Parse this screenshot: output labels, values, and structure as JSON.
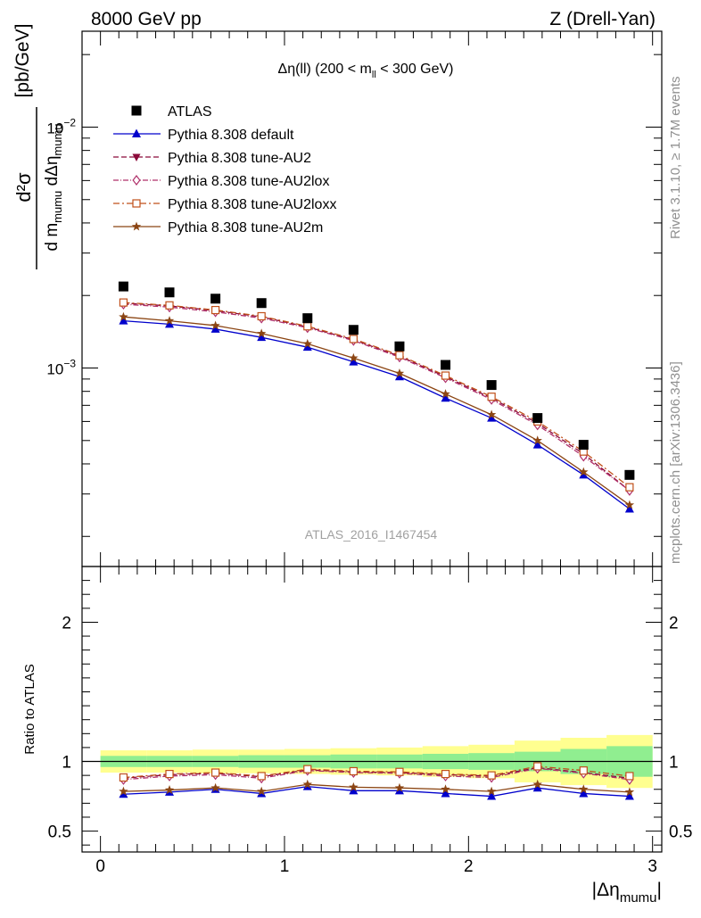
{
  "header": {
    "left": "8000 GeV pp",
    "right": "Z (Drell-Yan)"
  },
  "side_text": {
    "rivet": "Rivet 3.1.10, ≥ 1.7M events",
    "mcplots": "mcplots.cern.ch [arXiv:1306.3436]"
  },
  "watermark": "ATLAS_2016_I1467454",
  "colors": {
    "atlas": "#000000",
    "default": "#0000cc",
    "au2": "#8b0a3a",
    "au2lox": "#b0306a",
    "au2loxx": "#c0501a",
    "au2m": "#8b4513",
    "band_inner": "#90ee90",
    "band_outer": "#ffff90"
  },
  "chart_data": [
    {
      "type": "scatter",
      "title": "Δη(ll) (200 < m_ll < 300 GeV)",
      "title_parts": {
        "a": "Δη(ll) (200 < m",
        "sub": "ll",
        "b": " < 300 GeV)"
      },
      "ylabel_parts": {
        "num": "d²σ",
        "den_a": "d m",
        "den_sub1": "mumu",
        "den_b": " dΔη",
        "den_sub2": "mumu",
        "unit": "[pb/GeV]"
      },
      "yscale": "log",
      "ylim": [
        0.00015,
        0.025
      ],
      "xlim": [
        -0.1,
        3.05
      ],
      "y_ticks": [
        {
          "value": 0.001,
          "base": "10",
          "exp": "−3"
        },
        {
          "value": 0.01,
          "base": "10",
          "exp": "−2"
        }
      ],
      "x": [
        0.125,
        0.375,
        0.625,
        0.875,
        1.125,
        1.375,
        1.625,
        1.875,
        2.125,
        2.375,
        2.625,
        2.875
      ],
      "legend_position": "top-left",
      "series": [
        {
          "key": "atlas",
          "name": "ATLAS",
          "marker": "square",
          "values": [
            0.00218,
            0.00206,
            0.00194,
            0.00186,
            0.00161,
            0.00144,
            0.00123,
            0.00103,
            0.00085,
            0.00062,
            0.00048,
            0.00036
          ]
        },
        {
          "key": "default",
          "name": "Pythia 8.308 default",
          "marker": "triangle-up",
          "values": [
            0.00157,
            0.00152,
            0.00145,
            0.00134,
            0.00122,
            0.00106,
            0.00092,
            0.00075,
            0.00062,
            0.00048,
            0.00036,
            0.00026
          ]
        },
        {
          "key": "au2",
          "name": "Pythia 8.308 tune-AU2",
          "marker": "triangle-down",
          "values": [
            0.00186,
            0.00181,
            0.00173,
            0.00163,
            0.00148,
            0.00131,
            0.00112,
            0.00092,
            0.00075,
            0.00059,
            0.00044,
            0.00031
          ]
        },
        {
          "key": "au2lox",
          "name": "Pythia 8.308 tune-AU2lox",
          "marker": "diamond",
          "values": [
            0.00184,
            0.00179,
            0.00171,
            0.00161,
            0.00147,
            0.0013,
            0.00111,
            0.00091,
            0.00074,
            0.00058,
            0.00043,
            0.00031
          ]
        },
        {
          "key": "au2loxx",
          "name": "Pythia 8.308 tune-AU2loxx",
          "marker": "square-open",
          "values": [
            0.00187,
            0.00182,
            0.00174,
            0.00164,
            0.00149,
            0.00132,
            0.00113,
            0.00093,
            0.00076,
            0.0006,
            0.00045,
            0.00032
          ]
        },
        {
          "key": "au2m",
          "name": "Pythia 8.308 tune-AU2m",
          "marker": "star",
          "values": [
            0.00163,
            0.00157,
            0.0015,
            0.00139,
            0.00126,
            0.0011,
            0.00095,
            0.00078,
            0.00064,
            0.0005,
            0.00037,
            0.00027
          ]
        }
      ]
    },
    {
      "type": "line",
      "ylabel": "Ratio to ATLAS",
      "xlabel_parts": {
        "a": "|Δη",
        "sub": "mumu",
        "b": "|"
      },
      "ylim": [
        0.35,
        2.4
      ],
      "xlim": [
        -0.1,
        3.05
      ],
      "x_ticks": [
        {
          "value": 0,
          "label": "0"
        },
        {
          "value": 1,
          "label": "1"
        },
        {
          "value": 2,
          "label": "2"
        },
        {
          "value": 3,
          "label": "3"
        }
      ],
      "y_ticks": [
        {
          "value": 0.5,
          "label": "0.5"
        },
        {
          "value": 1,
          "label": "1"
        },
        {
          "value": 2,
          "label": "2"
        }
      ],
      "x": [
        0.125,
        0.375,
        0.625,
        0.875,
        1.125,
        1.375,
        1.625,
        1.875,
        2.125,
        2.375,
        2.625,
        2.875
      ],
      "band_edges": [
        0,
        0.25,
        0.5,
        0.75,
        1.0,
        1.25,
        1.5,
        1.75,
        2.0,
        2.25,
        2.5,
        2.75,
        3.0
      ],
      "band_inner": [
        0.04,
        0.04,
        0.04,
        0.045,
        0.045,
        0.05,
        0.05,
        0.055,
        0.06,
        0.07,
        0.09,
        0.11
      ],
      "band_outer": [
        0.08,
        0.08,
        0.085,
        0.085,
        0.09,
        0.095,
        0.1,
        0.11,
        0.12,
        0.15,
        0.17,
        0.19
      ],
      "series": [
        {
          "key": "default",
          "marker": "triangle-up",
          "values": [
            0.765,
            0.78,
            0.8,
            0.77,
            0.82,
            0.79,
            0.79,
            0.77,
            0.75,
            0.81,
            0.77,
            0.75
          ]
        },
        {
          "key": "au2",
          "marker": "triangle-down",
          "values": [
            0.88,
            0.905,
            0.915,
            0.89,
            0.94,
            0.925,
            0.92,
            0.905,
            0.895,
            0.955,
            0.92,
            0.88
          ]
        },
        {
          "key": "au2lox",
          "marker": "diamond",
          "values": [
            0.87,
            0.895,
            0.905,
            0.88,
            0.935,
            0.92,
            0.915,
            0.895,
            0.885,
            0.95,
            0.915,
            0.87
          ]
        },
        {
          "key": "au2loxx",
          "marker": "square-open",
          "values": [
            0.885,
            0.91,
            0.92,
            0.895,
            0.945,
            0.93,
            0.925,
            0.91,
            0.9,
            0.965,
            0.935,
            0.895
          ]
        },
        {
          "key": "au2m",
          "marker": "star",
          "values": [
            0.785,
            0.795,
            0.81,
            0.785,
            0.835,
            0.815,
            0.81,
            0.8,
            0.785,
            0.835,
            0.8,
            0.78
          ]
        }
      ]
    }
  ]
}
